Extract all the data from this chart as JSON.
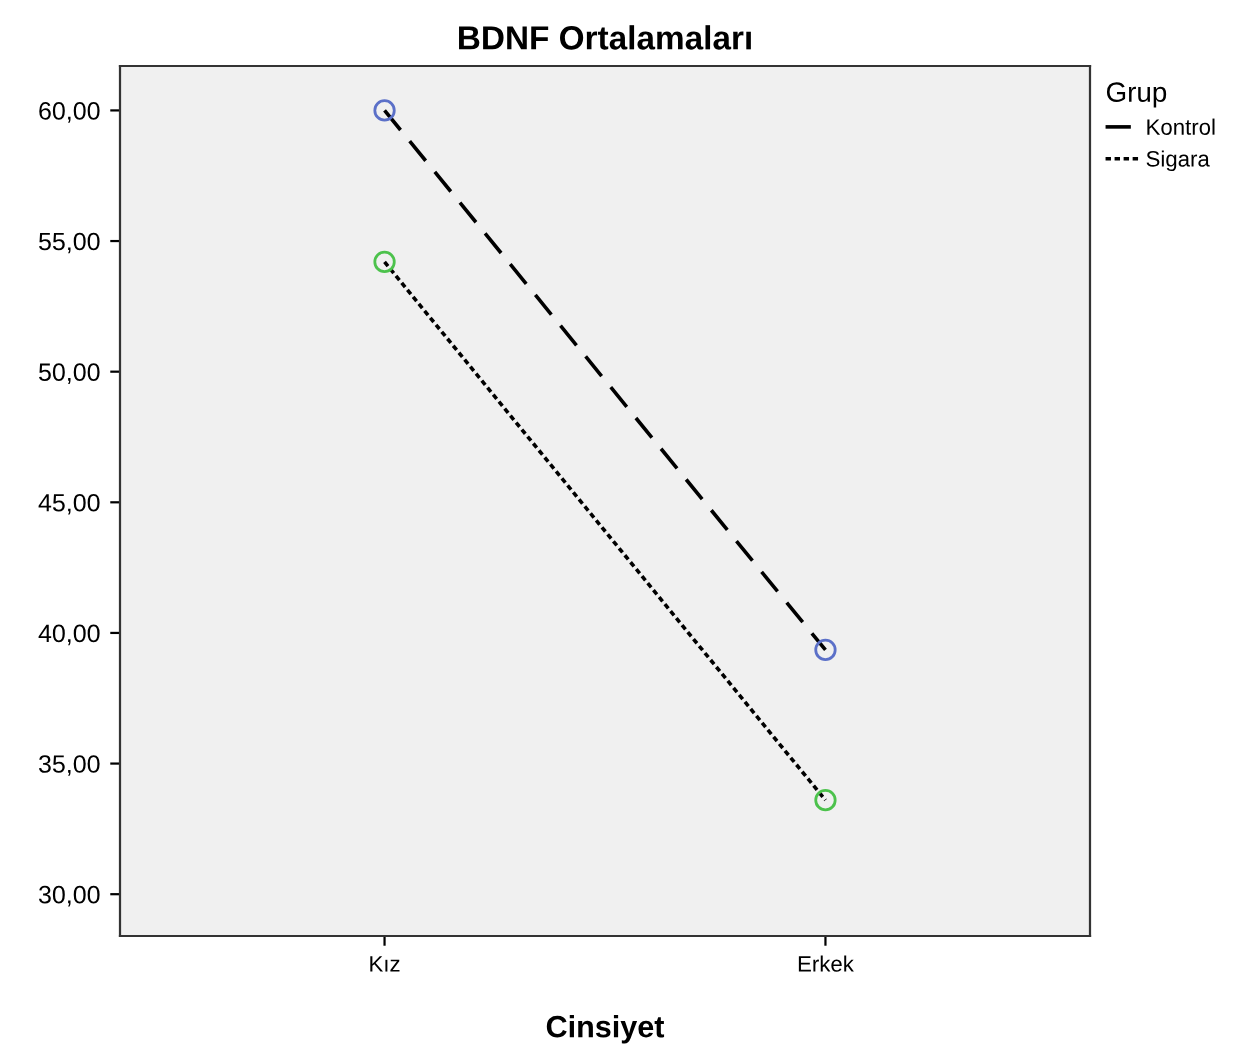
{
  "chart_data": {
    "type": "line",
    "title": "BDNF Ortalamaları",
    "xlabel": "Cinsiyet",
    "legend_title": "Grup",
    "legend": "right",
    "categories": [
      "Kız",
      "Erkek"
    ],
    "series": [
      {
        "name": "Kontrol",
        "color": "#000000",
        "colors": [
          "#5b70c8",
          "#5b70c8"
        ],
        "line_style": "dashed",
        "values": [
          60.0,
          39.35
        ]
      },
      {
        "name": "Sigara",
        "color": "#000000",
        "colors": [
          "#4cc24c",
          "#4cc24c"
        ],
        "line_style": "dotted",
        "values": [
          54.2,
          33.6
        ]
      }
    ],
    "marker": "circle",
    "ylim": [
      28.4,
      61.7
    ],
    "yticks": [
      {
        "value": 30,
        "label": "30,00"
      },
      {
        "value": 35,
        "label": "35,00"
      },
      {
        "value": 40,
        "label": "40,00"
      },
      {
        "value": 45,
        "label": "45,00"
      },
      {
        "value": 50,
        "label": "50,00"
      },
      {
        "value": 55,
        "label": "55,00"
      },
      {
        "value": 60,
        "label": "60,00"
      }
    ],
    "grid": false
  }
}
